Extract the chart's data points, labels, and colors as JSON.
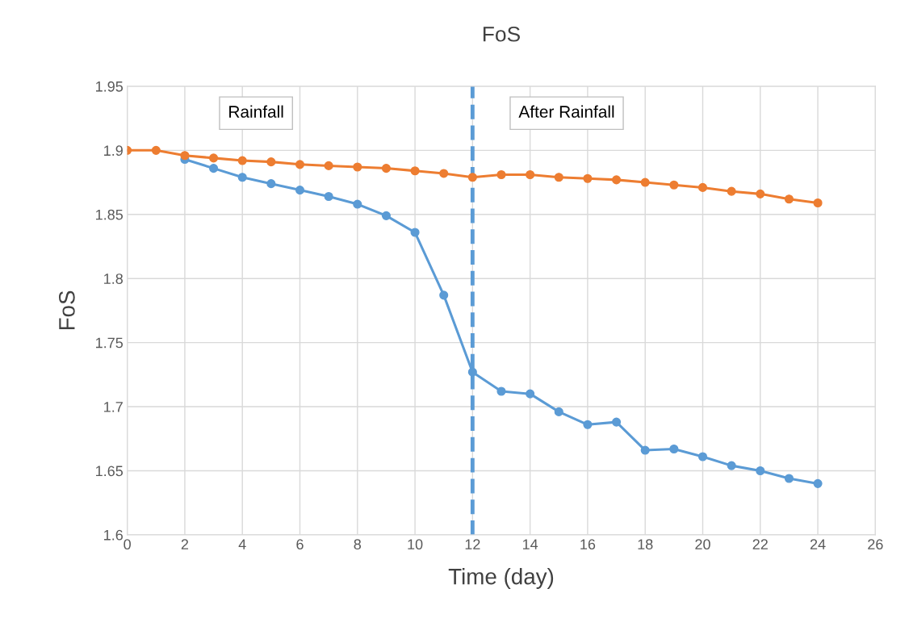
{
  "chart_data": {
    "type": "line",
    "title": "FoS",
    "xlabel": "Time (day)",
    "ylabel": "FoS",
    "x": [
      0,
      1,
      2,
      3,
      4,
      5,
      6,
      7,
      8,
      9,
      10,
      11,
      12,
      13,
      14,
      15,
      16,
      17,
      18,
      19,
      20,
      21,
      22,
      23,
      24
    ],
    "series": [
      {
        "color": "#5b9bd5",
        "values": [
          null,
          null,
          1.893,
          1.886,
          1.879,
          1.874,
          1.869,
          1.864,
          1.858,
          1.849,
          1.836,
          1.787,
          1.727,
          1.712,
          1.71,
          1.696,
          1.686,
          1.688,
          1.666,
          1.667,
          1.661,
          1.654,
          1.65,
          1.644,
          1.64
        ]
      },
      {
        "color": "#ed7d31",
        "values": [
          1.9,
          1.9,
          1.896,
          1.894,
          1.892,
          1.891,
          1.889,
          1.888,
          1.887,
          1.886,
          1.884,
          1.882,
          1.879,
          1.881,
          1.881,
          1.879,
          1.878,
          1.877,
          1.875,
          1.873,
          1.871,
          1.868,
          1.866,
          1.862,
          1.859
        ]
      }
    ],
    "xlim": [
      0,
      26
    ],
    "xticks": [
      0,
      2,
      4,
      6,
      8,
      10,
      12,
      14,
      16,
      18,
      20,
      22,
      24,
      26
    ],
    "ylim": [
      1.6,
      1.95
    ],
    "yticks": [
      1.6,
      1.65,
      1.7,
      1.75,
      1.8,
      1.85,
      1.9,
      1.95
    ],
    "ref_lines": [
      {
        "axis": "x",
        "value": 12,
        "color": "#5b9bd5",
        "line_style": "dashed"
      }
    ],
    "annotations": [
      "Rainfall",
      "After Rainfall"
    ],
    "grid": true,
    "marker": "circle",
    "line_style": "solid"
  }
}
